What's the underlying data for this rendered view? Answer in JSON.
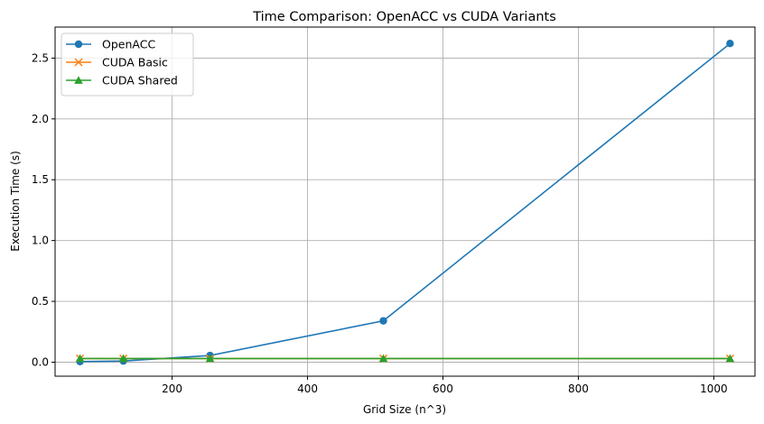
{
  "chart_data": {
    "type": "line",
    "title": "Time Comparison: OpenACC vs CUDA Variants",
    "xlabel": "Grid Size (n^3)",
    "ylabel": "Execution Time (s)",
    "xlim": [
      27.2,
      1060.8
    ],
    "ylim": [
      -0.115,
      2.755
    ],
    "x_ticks": [
      200,
      400,
      600,
      800,
      1000
    ],
    "y_ticks": [
      0.0,
      0.5,
      1.0,
      1.5,
      2.0,
      2.5
    ],
    "x_tick_labels": [
      "200",
      "400",
      "600",
      "800",
      "1000"
    ],
    "y_tick_labels": [
      "0.0",
      "0.5",
      "1.0",
      "1.5",
      "2.0",
      "2.5"
    ],
    "grid": true,
    "legend_position": "top-left",
    "x": [
      64,
      128,
      256,
      512,
      1024
    ],
    "series": [
      {
        "name": "OpenACC",
        "values": [
          0.005,
          0.01,
          0.055,
          0.34,
          2.62
        ],
        "color": "#1f77b4",
        "marker": "circle"
      },
      {
        "name": "CUDA Basic",
        "values": [
          0.03,
          0.03,
          0.03,
          0.03,
          0.03
        ],
        "color": "#ff7f0e",
        "marker": "x"
      },
      {
        "name": "CUDA Shared",
        "values": [
          0.03,
          0.03,
          0.03,
          0.03,
          0.03
        ],
        "color": "#2ca02c",
        "marker": "triangle"
      }
    ]
  }
}
